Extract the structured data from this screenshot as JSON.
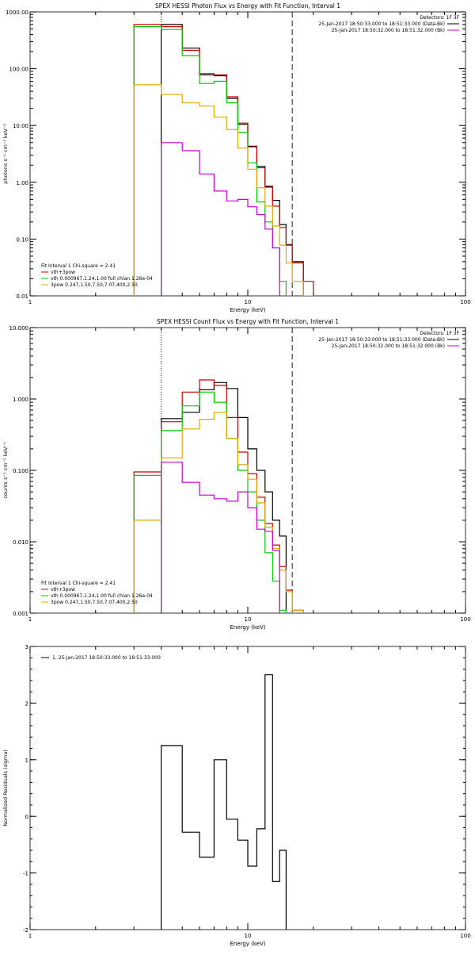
{
  "chart_data": [
    {
      "type": "line",
      "title": "SPEX HESSI Photon Flux vs Energy with Fit Function, Interval 1",
      "xlabel": "Energy (keV)",
      "ylabel": "photons s⁻¹ cm⁻² keV⁻¹",
      "xscale": "log",
      "yscale": "log",
      "xlim": [
        1,
        100
      ],
      "ylim": [
        0.01,
        1000
      ],
      "x_ticks": [
        "1",
        "10",
        "100"
      ],
      "y_ticks": [
        "0.01",
        "0.10",
        "1.00",
        "10.00",
        "100.00",
        "1000.00"
      ],
      "detectors": "Detectors: 1F 3F",
      "time_labels": [
        {
          "text": "25-Jan-2017 18:50:33.000 to 18:51:33.000 (Data-Bk)",
          "color": "#000000"
        },
        {
          "text": "25-Jan-2017 18:50:32.000 to 18:51:32.000 (Bk)",
          "color": "#cc00cc"
        }
      ],
      "fit_info": {
        "line1": "Fit Interval 1   Chi-square = 2.41",
        "entries": [
          {
            "text": "vth+3pow",
            "color": "#cc0000"
          },
          {
            "text": "vth 0.000967,1.24,1.00  full chian 1.26e-04",
            "color": "#00cc00"
          },
          {
            "text": "3pow 0.247,1.50,7.50,7.07,400,2.50",
            "color": "#ddaa00"
          }
        ]
      },
      "vlines": [
        {
          "x": 4.0,
          "style": "dotted"
        },
        {
          "x": 16.0,
          "style": "dashed"
        }
      ],
      "edges": [
        3,
        4,
        5,
        6,
        7,
        8,
        9,
        10,
        11,
        12,
        13,
        14,
        15,
        16,
        18,
        20
      ],
      "series": [
        {
          "name": "Data-Bk",
          "color": "#000000",
          "width": 1.2,
          "start": 1,
          "values": [
            600,
            230,
            78,
            75,
            30,
            10.5,
            4.3,
            1.9,
            0.85,
            0.48,
            0.18,
            0.08,
            0.04
          ]
        },
        {
          "name": "vth+3pow",
          "color": "#cc0000",
          "width": 1.2,
          "start": 0,
          "values": [
            600,
            550,
            210,
            82,
            78,
            32,
            11,
            4.2,
            1.8,
            0.82,
            0.38,
            0.16,
            0.078,
            0.038,
            0.018
          ]
        },
        {
          "name": "vth",
          "color": "#00cc00",
          "width": 1.2,
          "start": 0,
          "values": [
            550,
            490,
            170,
            55,
            60,
            25,
            7.5,
            2.2,
            0.45,
            0.2,
            0.07,
            0.018,
            0.0045
          ]
        },
        {
          "name": "3pow",
          "color": "#ddaa00",
          "width": 1.2,
          "start": 0,
          "values": [
            52,
            35,
            25,
            22,
            14,
            8.5,
            4.0,
            1.7,
            0.8,
            0.38,
            0.17,
            0.078,
            0.038,
            0.018,
            0.0085
          ]
        },
        {
          "name": "Bk",
          "color": "#cc00cc",
          "width": 1.2,
          "start": 1,
          "values": [
            5.0,
            3.6,
            1.4,
            0.7,
            0.47,
            0.5,
            0.37,
            0.27,
            0.15,
            0.07
          ]
        }
      ]
    },
    {
      "type": "line",
      "title": "SPEX HESSI Count Flux vs Energy with Fit Function, Interval 1",
      "xlabel": "Energy (keV)",
      "ylabel": "counts s⁻¹ cm⁻² keV⁻¹",
      "xscale": "log",
      "yscale": "log",
      "xlim": [
        1,
        100
      ],
      "ylim": [
        0.001,
        10
      ],
      "x_ticks": [
        "1",
        "10",
        "100"
      ],
      "y_ticks": [
        "0.001",
        "0.010",
        "0.100",
        "1.000",
        "10.000"
      ],
      "detectors": "Detectors: 1F 3F",
      "time_labels": [
        {
          "text": "25-Jan-2017 18:50:33.000 to 18:51:33.000 (Data-Bk)",
          "color": "#000000"
        },
        {
          "text": "25-Jan-2017 18:50:32.000 to 18:51:32.000 (Bk)",
          "color": "#cc00cc"
        }
      ],
      "fit_info": {
        "line1": "Fit Interval 1   Chi-square = 2.41",
        "entries": [
          {
            "text": "vth+3pow",
            "color": "#cc0000"
          },
          {
            "text": "vth 0.000967,1.24,1.00  full chian 1.26e-04",
            "color": "#00cc00"
          },
          {
            "text": "3pow 0.247,1.50,7.50,7.07,400,2.50",
            "color": "#ddaa00"
          }
        ]
      },
      "vlines": [
        {
          "x": 4.0,
          "style": "dotted"
        },
        {
          "x": 16.0,
          "style": "dashed"
        }
      ],
      "edges": [
        3,
        4,
        5,
        6,
        7,
        8,
        9,
        10,
        11,
        12,
        13,
        14,
        15,
        16,
        18,
        20,
        22
      ],
      "series": [
        {
          "name": "Data-Bk",
          "color": "#000000",
          "width": 1.2,
          "start": 1,
          "values": [
            0.53,
            0.65,
            1.35,
            1.7,
            1.4,
            0.55,
            0.2,
            0.1,
            0.05,
            0.02,
            0.012
          ]
        },
        {
          "name": "vth+3pow",
          "color": "#cc0000",
          "width": 1.2,
          "start": 0,
          "values": [
            0.095,
            0.48,
            1.25,
            1.85,
            1.55,
            0.55,
            0.18,
            0.09,
            0.042,
            0.018,
            0.009,
            0.0045,
            0.0021,
            0.0011
          ]
        },
        {
          "name": "vth",
          "color": "#00cc00",
          "width": 1.2,
          "start": 0,
          "values": [
            0.085,
            0.36,
            0.8,
            1.25,
            0.9,
            0.28,
            0.1,
            0.05,
            0.02,
            0.007,
            0.0028,
            0.0011
          ]
        },
        {
          "name": "3pow",
          "color": "#ddaa00",
          "width": 1.2,
          "start": 0,
          "values": [
            0.02,
            0.15,
            0.38,
            0.52,
            0.65,
            0.28,
            0.12,
            0.075,
            0.035,
            0.016,
            0.008,
            0.004,
            0.002,
            0.0011
          ]
        },
        {
          "name": "Bk",
          "color": "#cc00cc",
          "width": 1.2,
          "start": 1,
          "values": [
            0.13,
            0.068,
            0.045,
            0.04,
            0.037,
            0.05,
            0.03,
            0.015,
            0.014,
            0.0075
          ]
        }
      ]
    },
    {
      "type": "line",
      "title": "",
      "xlabel": "Energy (keV)",
      "ylabel": "Normalized Residuals (sigma)",
      "xscale": "log",
      "yscale": "linear",
      "xlim": [
        1,
        100
      ],
      "ylim": [
        -2,
        3
      ],
      "x_ticks": [
        "1",
        "10",
        "100"
      ],
      "y_ticks": [
        "-2",
        "-1",
        "0",
        "1",
        "2",
        "3"
      ],
      "legend": "1, 25-Jan-2017 18:50:33.000 to 18:51:33.000",
      "edges": [
        4,
        5,
        6,
        7,
        8,
        9,
        10,
        11,
        12,
        13,
        14,
        15,
        16
      ],
      "series": [
        {
          "name": "residuals",
          "color": "#000000",
          "width": 1.2,
          "start": 0,
          "values": [
            1.25,
            -0.28,
            -0.72,
            1.0,
            -0.05,
            -0.42,
            -0.88,
            -0.22,
            2.5,
            -1.15,
            -0.6
          ]
        }
      ]
    }
  ]
}
